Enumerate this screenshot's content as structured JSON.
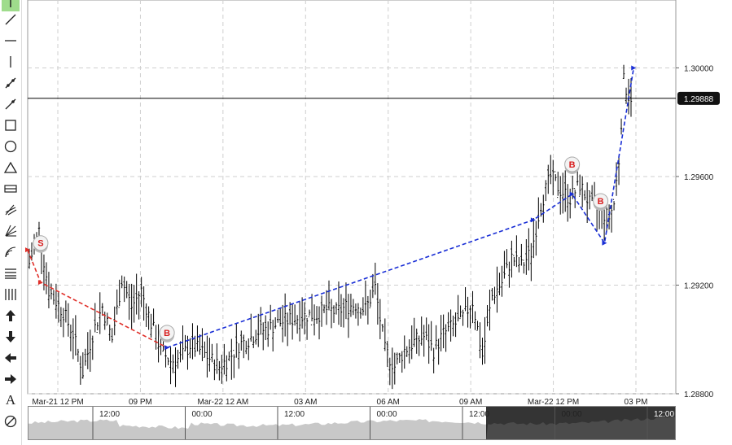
{
  "toolbar": {
    "tools": [
      {
        "name": "cursor-tool",
        "icon": "cursor-icon",
        "active": true
      },
      {
        "name": "trend-line-tool",
        "icon": "diagonal-line-icon"
      },
      {
        "name": "horizontal-line-tool",
        "icon": "horizontal-line-icon"
      },
      {
        "name": "vertical-line-tool",
        "icon": "vertical-line-icon"
      },
      {
        "name": "ray-tool",
        "icon": "ray-icon"
      },
      {
        "name": "extended-line-tool",
        "icon": "extended-line-icon"
      },
      {
        "name": "rectangle-tool",
        "icon": "rectangle-icon"
      },
      {
        "name": "ellipse-tool",
        "icon": "ellipse-icon"
      },
      {
        "name": "triangle-tool",
        "icon": "triangle-icon"
      },
      {
        "name": "channel-tool",
        "icon": "channel-icon"
      },
      {
        "name": "pitchfork-tool",
        "icon": "pitchfork-icon"
      },
      {
        "name": "fan-tool",
        "icon": "fan-icon"
      },
      {
        "name": "arcs-tool",
        "icon": "arcs-icon"
      },
      {
        "name": "fib-retracement-tool",
        "icon": "horizontal-lines-icon"
      },
      {
        "name": "fib-timezones-tool",
        "icon": "vertical-lines-icon"
      },
      {
        "name": "arrow-up-tool",
        "icon": "arrow-up-icon"
      },
      {
        "name": "arrow-down-tool",
        "icon": "arrow-down-icon"
      },
      {
        "name": "arrow-left-tool",
        "icon": "arrow-left-icon"
      },
      {
        "name": "arrow-right-tool",
        "icon": "arrow-right-icon"
      },
      {
        "name": "text-tool",
        "icon": "text-icon",
        "label": "A"
      },
      {
        "name": "remove-drawings-tool",
        "icon": "eraser-icon"
      }
    ]
  },
  "chart_data": {
    "type": "candlestick",
    "title": "",
    "y_ticks": [
      "1.30000",
      "1.29600",
      "1.29200",
      "1.28800"
    ],
    "y_range": [
      1.288,
      1.3025
    ],
    "x_ticks": [
      "Mar-21 12 PM",
      "09 PM",
      "Mar-22 12 AM",
      "03 AM",
      "06 AM",
      "09 AM",
      "Mar-22 12 PM",
      "03 PM"
    ],
    "current_price": "1.29888",
    "current_price_value": 1.29888,
    "price_path_bars": 240,
    "price_path_knots": [
      [
        0,
        1.2928
      ],
      [
        4,
        1.294
      ],
      [
        8,
        1.2918
      ],
      [
        14,
        1.291
      ],
      [
        18,
        1.2902
      ],
      [
        22,
        1.2888
      ],
      [
        26,
        1.2902
      ],
      [
        30,
        1.2912
      ],
      [
        34,
        1.29
      ],
      [
        38,
        1.2922
      ],
      [
        42,
        1.2912
      ],
      [
        46,
        1.2918
      ],
      [
        50,
        1.2906
      ],
      [
        54,
        1.2896
      ],
      [
        58,
        1.2892
      ],
      [
        62,
        1.2893
      ],
      [
        66,
        1.2898
      ],
      [
        70,
        1.2896
      ],
      [
        74,
        1.2893
      ],
      [
        78,
        1.289
      ],
      [
        82,
        1.2893
      ],
      [
        86,
        1.2898
      ],
      [
        90,
        1.29
      ],
      [
        94,
        1.2903
      ],
      [
        98,
        1.2904
      ],
      [
        102,
        1.2906
      ],
      [
        106,
        1.2907
      ],
      [
        110,
        1.2908
      ],
      [
        114,
        1.2909
      ],
      [
        118,
        1.2909
      ],
      [
        122,
        1.2911
      ],
      [
        126,
        1.291
      ],
      [
        130,
        1.2912
      ],
      [
        134,
        1.2913
      ],
      [
        138,
        1.2911
      ],
      [
        142,
        1.2919
      ],
      [
        146,
        1.2896
      ],
      [
        150,
        1.289
      ],
      [
        154,
        1.2896
      ],
      [
        158,
        1.2899
      ],
      [
        162,
        1.2901
      ],
      [
        166,
        1.2896
      ],
      [
        170,
        1.2902
      ],
      [
        174,
        1.2905
      ],
      [
        178,
        1.2908
      ],
      [
        182,
        1.2914
      ],
      [
        186,
        1.2894
      ],
      [
        190,
        1.2916
      ],
      [
        194,
        1.2921
      ],
      [
        198,
        1.293
      ],
      [
        202,
        1.2927
      ],
      [
        206,
        1.2932
      ],
      [
        210,
        1.295
      ],
      [
        214,
        1.296
      ],
      [
        218,
        1.2955
      ],
      [
        222,
        1.2952
      ],
      [
        226,
        1.2957
      ],
      [
        230,
        1.295
      ],
      [
        234,
        1.2947
      ],
      [
        238,
        1.2945
      ],
      [
        240,
        1.295
      ],
      [
        242,
        1.2966
      ],
      [
        244,
        1.2995
      ],
      [
        246,
        1.299
      ],
      [
        248,
        1.2989
      ]
    ],
    "signals": [
      {
        "label": "S",
        "side": "sell",
        "x_frac": 0.02,
        "price": 1.29355
      },
      {
        "label": "B",
        "side": "buy",
        "x_frac": 0.215,
        "price": 1.29025
      },
      {
        "label": "B",
        "side": "buy",
        "x_frac": 0.84,
        "price": 1.29645
      },
      {
        "label": "B",
        "side": "buy",
        "x_frac": 0.884,
        "price": 1.2951
      }
    ],
    "trend_lines": [
      {
        "color": "#e0302a",
        "points": [
          [
            0.0,
            1.2933
          ],
          [
            0.02,
            1.2921
          ],
          [
            0.215,
            1.2897
          ]
        ]
      },
      {
        "color": "#1a2fd6",
        "points": [
          [
            0.215,
            1.2897
          ],
          [
            0.78,
            1.2944
          ],
          [
            0.84,
            1.29535
          ],
          [
            0.89,
            1.29355
          ],
          [
            0.935,
            1.3
          ]
        ]
      }
    ],
    "colors": {
      "candle": "#000000",
      "grid": "#cfcfcf",
      "sell": "#e0302a",
      "buy": "#1a2fd6"
    }
  },
  "navigator": {
    "labels": [
      "12:00",
      "00:00",
      "12:00",
      "00:00",
      "12:00",
      "00:00",
      "12:00"
    ]
  }
}
